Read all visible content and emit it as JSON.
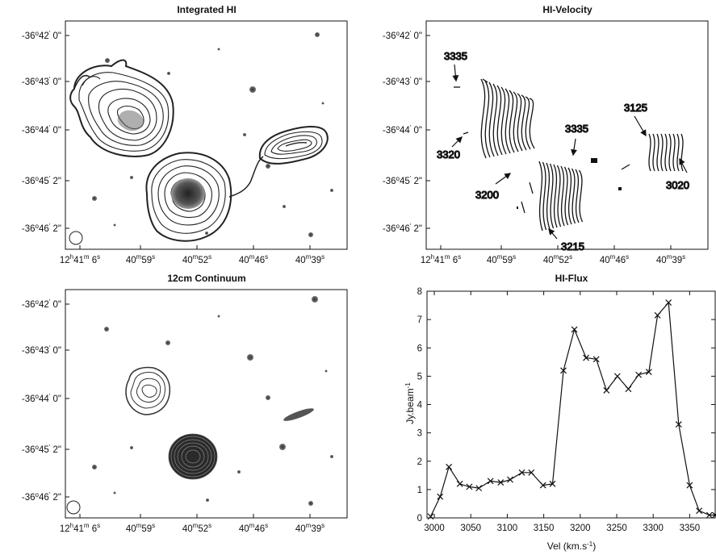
{
  "panels": {
    "integrated_hi": {
      "title": "Integrated HI"
    },
    "hi_velocity": {
      "title": "HI-Velocity",
      "annotations": [
        "3335",
        "3320",
        "3200",
        "3335",
        "3215",
        "3125",
        "3020"
      ]
    },
    "continuum": {
      "title": "12cm Continuum"
    }
  },
  "sky_axes": {
    "dec_ticks": [
      {
        "deg": "-36",
        "min": "42",
        "sec": "0\""
      },
      {
        "deg": "-36",
        "min": "43",
        "sec": "0\""
      },
      {
        "deg": "-36",
        "min": "44",
        "sec": "0\""
      },
      {
        "deg": "-36",
        "min": "45",
        "sec": "2\""
      },
      {
        "deg": "-36",
        "min": "46",
        "sec": "2\""
      }
    ],
    "ra_ticks": [
      {
        "h": "12",
        "hs": "h",
        "m": "41",
        "ms": "m",
        "s": "6",
        "ss": "s"
      },
      {
        "h": "",
        "hs": "",
        "m": "40",
        "ms": "m",
        "s": "59",
        "ss": "s"
      },
      {
        "h": "",
        "hs": "",
        "m": "40",
        "ms": "m",
        "s": "52",
        "ss": "s"
      },
      {
        "h": "",
        "hs": "",
        "m": "40",
        "ms": "m",
        "s": "46",
        "ss": "s"
      },
      {
        "h": "",
        "hs": "",
        "m": "40",
        "ms": "m",
        "s": "39",
        "ss": "s"
      }
    ]
  },
  "chart_data": {
    "type": "line",
    "title": "HI-Flux",
    "xlabel": "Vel (km.s",
    "xlabel_sup": "-1",
    "xlabel_end": ")",
    "ylabel": "Jy.beam",
    "ylabel_sup": "-1",
    "xlim": [
      2990,
      3385
    ],
    "ylim": [
      0,
      8
    ],
    "xticks": [
      3000,
      3050,
      3100,
      3150,
      3200,
      3250,
      3300,
      3350
    ],
    "yticks": [
      0,
      1,
      2,
      3,
      4,
      5,
      6,
      7,
      8
    ],
    "marker": "x",
    "series": [
      {
        "x": [
          2995,
          3008,
          3020,
          3035,
          3048,
          3061,
          3077,
          3091,
          3104,
          3120,
          3133,
          3149,
          3162,
          3177,
          3192,
          3208,
          3222,
          3236,
          3251,
          3266,
          3280,
          3294,
          3306,
          3321,
          3335,
          3350,
          3363,
          3377,
          3385
        ],
        "y": [
          0.05,
          0.75,
          1.8,
          1.2,
          1.1,
          1.05,
          1.3,
          1.25,
          1.35,
          1.6,
          1.6,
          1.15,
          1.2,
          5.2,
          6.65,
          5.65,
          5.6,
          4.5,
          5.0,
          4.55,
          5.05,
          5.15,
          7.15,
          7.6,
          3.3,
          1.15,
          0.25,
          0.1,
          0.1
        ]
      }
    ]
  }
}
